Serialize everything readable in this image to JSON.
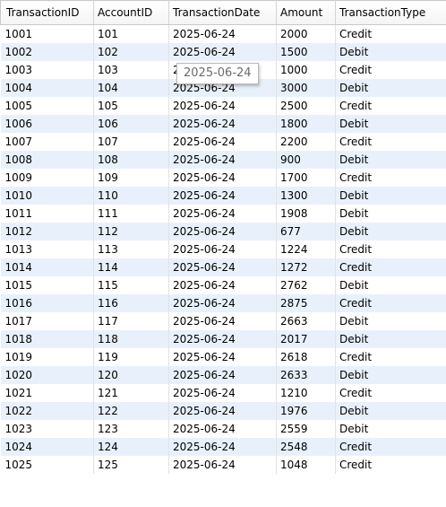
{
  "result_grid": {
    "columns": [
      "TransactionID",
      "AccountID",
      "TransactionDate",
      "Amount",
      "TransactionType"
    ],
    "rows": [
      [
        "1001",
        "101",
        "2025-06-24",
        "2000",
        "Credit"
      ],
      [
        "1002",
        "102",
        "2025-06-24",
        "1500",
        "Debit"
      ],
      [
        "1003",
        "103",
        "2025-06-24",
        "1000",
        "Credit"
      ],
      [
        "1004",
        "104",
        "2025-06-24",
        "3000",
        "Debit"
      ],
      [
        "1005",
        "105",
        "2025-06-24",
        "2500",
        "Credit"
      ],
      [
        "1006",
        "106",
        "2025-06-24",
        "1800",
        "Debit"
      ],
      [
        "1007",
        "107",
        "2025-06-24",
        "2200",
        "Credit"
      ],
      [
        "1008",
        "108",
        "2025-06-24",
        "900",
        "Debit"
      ],
      [
        "1009",
        "109",
        "2025-06-24",
        "1700",
        "Credit"
      ],
      [
        "1010",
        "110",
        "2025-06-24",
        "1300",
        "Debit"
      ],
      [
        "1011",
        "111",
        "2025-06-24",
        "1908",
        "Debit"
      ],
      [
        "1012",
        "112",
        "2025-06-24",
        "677",
        "Debit"
      ],
      [
        "1013",
        "113",
        "2025-06-24",
        "1224",
        "Credit"
      ],
      [
        "1014",
        "114",
        "2025-06-24",
        "1272",
        "Credit"
      ],
      [
        "1015",
        "115",
        "2025-06-24",
        "2762",
        "Debit"
      ],
      [
        "1016",
        "116",
        "2025-06-24",
        "2875",
        "Credit"
      ],
      [
        "1017",
        "117",
        "2025-06-24",
        "2663",
        "Debit"
      ],
      [
        "1018",
        "118",
        "2025-06-24",
        "2017",
        "Debit"
      ],
      [
        "1019",
        "119",
        "2025-06-24",
        "2618",
        "Credit"
      ],
      [
        "1020",
        "120",
        "2025-06-24",
        "2633",
        "Debit"
      ],
      [
        "1021",
        "121",
        "2025-06-24",
        "1210",
        "Credit"
      ],
      [
        "1022",
        "122",
        "2025-06-24",
        "1976",
        "Debit"
      ],
      [
        "1023",
        "123",
        "2025-06-24",
        "2559",
        "Debit"
      ],
      [
        "1024",
        "124",
        "2025-06-24",
        "2548",
        "Credit"
      ],
      [
        "1025",
        "125",
        "2025-06-24",
        "1048",
        "Credit"
      ]
    ]
  },
  "tooltip": {
    "text": "2025-06-24"
  }
}
